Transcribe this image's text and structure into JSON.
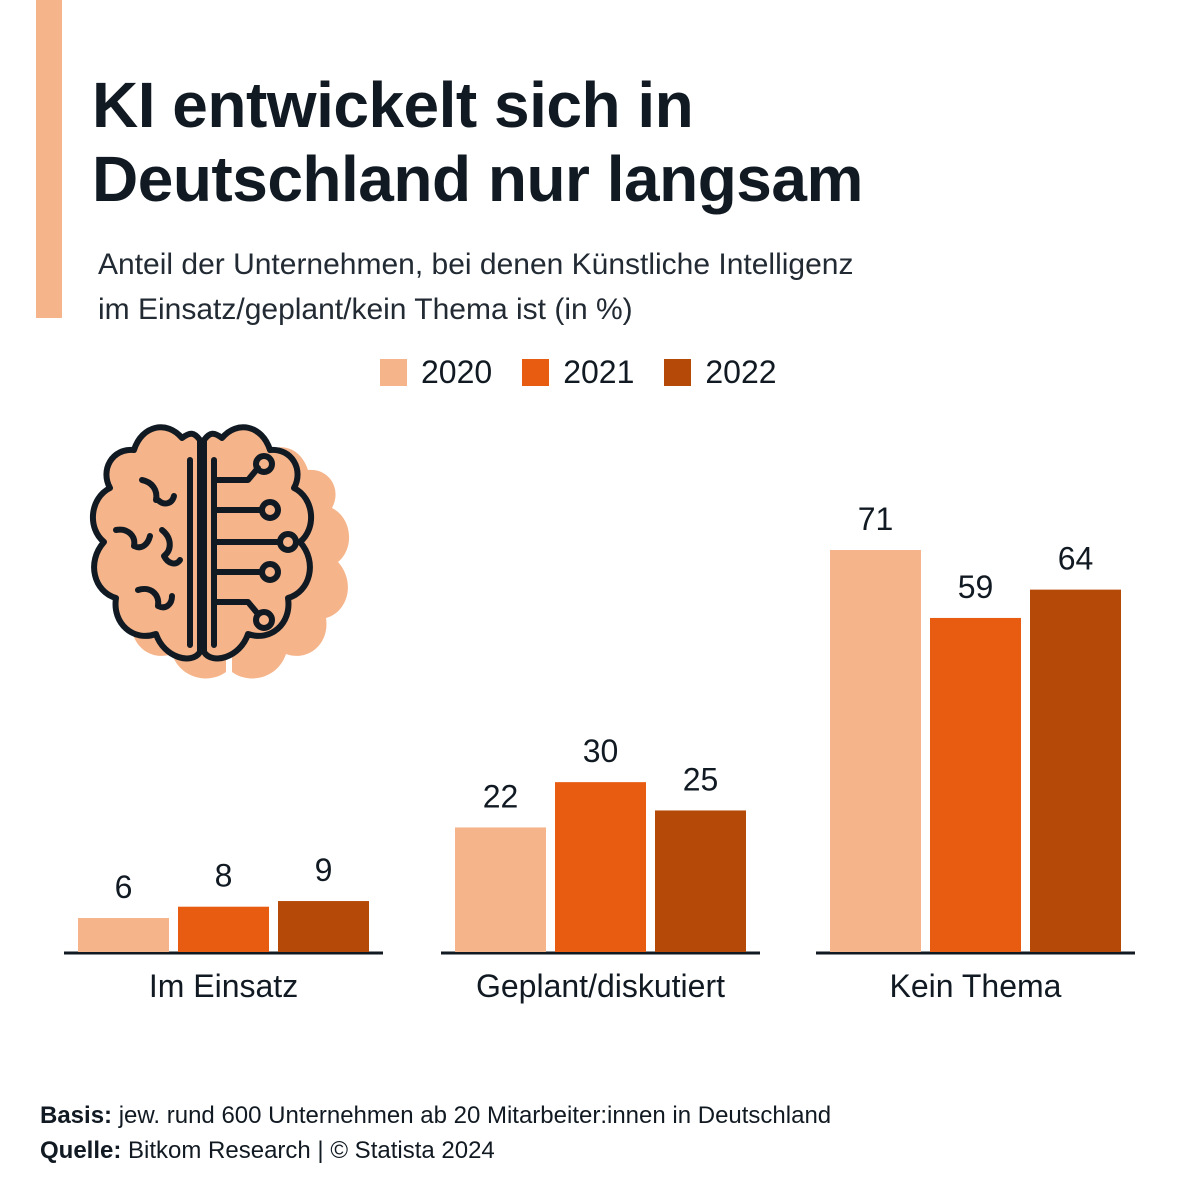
{
  "header": {
    "title_line1": "KI entwickelt sich in",
    "title_line2": "Deutschland nur langsam",
    "subtitle_line1": "Anteil der Unternehmen, bei denen Künstliche Intelligenz",
    "subtitle_line2": "im Einsatz/geplant/kein Thema ist (in %)"
  },
  "colors": {
    "accent": "#f5b48a",
    "s2020": "#f5b48a",
    "s2021": "#e85c12",
    "s2022": "#b54a08",
    "axis": "#111a22",
    "brain_fill": "#f5b48a",
    "brain_stroke": "#111a22"
  },
  "icon": {
    "name": "brain-circuit-icon"
  },
  "chart_data": {
    "type": "bar",
    "title": "KI entwickelt sich in Deutschland nur langsam",
    "subtitle": "Anteil der Unternehmen, bei denen Künstliche Intelligenz im Einsatz/geplant/kein Thema ist (in %)",
    "categories": [
      "Im Einsatz",
      "Geplant/diskutiert",
      "Kein Thema"
    ],
    "series": [
      {
        "name": "2020",
        "values": [
          6,
          22,
          71
        ]
      },
      {
        "name": "2021",
        "values": [
          8,
          30,
          59
        ]
      },
      {
        "name": "2022",
        "values": [
          9,
          25,
          64
        ]
      }
    ],
    "ylim": [
      0,
      71
    ],
    "grid": false,
    "legend": "top-center",
    "data_labels": true
  },
  "footer": {
    "basis_label": "Basis:",
    "basis_text": " jew. rund 600 Unternehmen ab 20 Mitarbeiter:innen in Deutschland",
    "source_label": "Quelle:",
    "source_text": " Bitkom Research | © Statista 2024"
  }
}
